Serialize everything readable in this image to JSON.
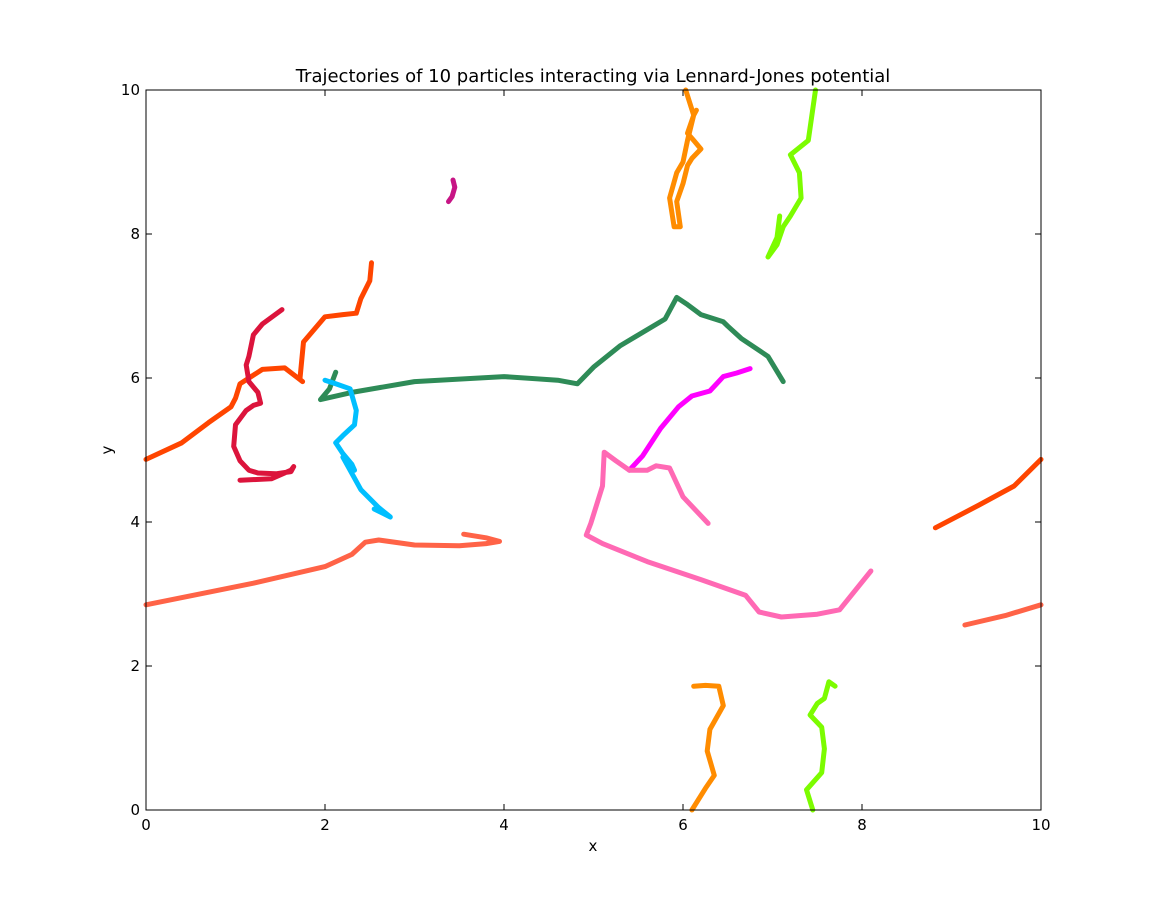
{
  "chart_data": {
    "type": "line",
    "title": "Trajectories of 10 particles interacting via Lennard-Jones potential",
    "xlabel": "x",
    "ylabel": "y",
    "xlim": [
      0,
      10
    ],
    "ylim": [
      0,
      10
    ],
    "xticks": [
      "0",
      "2",
      "4",
      "6",
      "8",
      "10"
    ],
    "yticks": [
      "0",
      "2",
      "4",
      "6",
      "8",
      "10"
    ],
    "grid": false,
    "legend": "none",
    "series": [
      {
        "color": "#ff4500",
        "segments": [
          [
            [
              0,
              4.87
            ],
            [
              0.4,
              5.1
            ],
            [
              0.7,
              5.38
            ],
            [
              0.95,
              5.6
            ],
            [
              1.0,
              5.72
            ],
            [
              1.05,
              5.92
            ],
            [
              1.3,
              6.12
            ],
            [
              1.55,
              6.14
            ],
            [
              1.75,
              5.95
            ],
            [
              1.72,
              5.98
            ],
            [
              1.76,
              6.5
            ],
            [
              2.0,
              6.85
            ],
            [
              2.2,
              6.88
            ],
            [
              2.35,
              6.9
            ],
            [
              2.4,
              7.1
            ],
            [
              2.5,
              7.35
            ],
            [
              2.52,
              7.6
            ]
          ],
          [
            [
              8.82,
              3.92
            ],
            [
              9.3,
              4.23
            ],
            [
              9.7,
              4.5
            ],
            [
              10,
              4.87
            ]
          ]
        ]
      },
      {
        "color": "#dc143c",
        "segments": [
          [
            [
              1.52,
              6.95
            ],
            [
              1.3,
              6.75
            ],
            [
              1.2,
              6.6
            ],
            [
              1.15,
              6.3
            ],
            [
              1.12,
              6.18
            ],
            [
              1.15,
              5.95
            ],
            [
              1.25,
              5.8
            ],
            [
              1.28,
              5.65
            ],
            [
              1.2,
              5.62
            ],
            [
              1.12,
              5.55
            ],
            [
              1.0,
              5.35
            ],
            [
              0.98,
              5.05
            ],
            [
              1.05,
              4.85
            ],
            [
              1.15,
              4.72
            ],
            [
              1.25,
              4.68
            ],
            [
              1.45,
              4.67
            ],
            [
              1.62,
              4.7
            ],
            [
              1.65,
              4.77
            ],
            [
              1.62,
              4.72
            ],
            [
              1.4,
              4.6
            ],
            [
              1.05,
              4.58
            ]
          ]
        ]
      },
      {
        "color": "#c71585",
        "segments": [
          [
            [
              3.43,
              8.75
            ],
            [
              3.45,
              8.65
            ],
            [
              3.42,
              8.52
            ],
            [
              3.38,
              8.45
            ]
          ]
        ]
      },
      {
        "color": "#2e8b57",
        "segments": [
          [
            [
              2.12,
              6.08
            ],
            [
              2.05,
              5.85
            ],
            [
              1.95,
              5.7
            ],
            [
              2.3,
              5.8
            ],
            [
              3.0,
              5.95
            ],
            [
              4.0,
              6.02
            ],
            [
              4.6,
              5.97
            ],
            [
              4.82,
              5.92
            ],
            [
              5.0,
              6.15
            ],
            [
              5.3,
              6.45
            ],
            [
              5.8,
              6.82
            ],
            [
              5.93,
              7.12
            ],
            [
              6.05,
              7.02
            ],
            [
              6.2,
              6.88
            ],
            [
              6.45,
              6.78
            ],
            [
              6.5,
              6.72
            ],
            [
              6.65,
              6.55
            ],
            [
              6.95,
              6.3
            ],
            [
              7.12,
              5.95
            ]
          ]
        ]
      },
      {
        "color": "#00bfff",
        "segments": [
          [
            [
              2.0,
              5.97
            ],
            [
              2.12,
              5.92
            ],
            [
              2.28,
              5.85
            ],
            [
              2.35,
              5.55
            ],
            [
              2.33,
              5.35
            ],
            [
              2.2,
              5.2
            ],
            [
              2.12,
              5.1
            ],
            [
              2.2,
              4.95
            ],
            [
              2.3,
              4.8
            ],
            [
              2.33,
              4.72
            ],
            [
              2.2,
              4.9
            ],
            [
              2.4,
              4.45
            ],
            [
              2.6,
              4.2
            ],
            [
              2.73,
              4.07
            ],
            [
              2.55,
              4.18
            ]
          ]
        ]
      },
      {
        "color": "#ff00ff",
        "segments": [
          [
            [
              5.4,
              4.72
            ],
            [
              5.55,
              4.92
            ],
            [
              5.75,
              5.3
            ],
            [
              5.95,
              5.6
            ],
            [
              6.1,
              5.75
            ],
            [
              6.3,
              5.82
            ],
            [
              6.45,
              6.02
            ],
            [
              6.6,
              6.07
            ],
            [
              6.75,
              6.13
            ]
          ]
        ]
      },
      {
        "color": "#ff69b4",
        "segments": [
          [
            [
              6.28,
              3.98
            ],
            [
              6.0,
              4.35
            ],
            [
              5.85,
              4.75
            ],
            [
              5.7,
              4.78
            ],
            [
              5.6,
              4.72
            ],
            [
              5.4,
              4.72
            ],
            [
              5.25,
              4.85
            ],
            [
              5.12,
              4.97
            ],
            [
              5.1,
              4.5
            ],
            [
              4.97,
              3.98
            ],
            [
              4.92,
              3.82
            ],
            [
              5.1,
              3.7
            ],
            [
              5.6,
              3.45
            ],
            [
              6.2,
              3.2
            ],
            [
              6.7,
              2.98
            ],
            [
              6.85,
              2.75
            ],
            [
              7.1,
              2.68
            ],
            [
              7.5,
              2.72
            ],
            [
              7.75,
              2.78
            ],
            [
              8.1,
              3.32
            ]
          ]
        ]
      },
      {
        "color": "#ff6347",
        "segments": [
          [
            [
              0,
              2.85
            ],
            [
              1.2,
              3.15
            ],
            [
              2.0,
              3.38
            ],
            [
              2.3,
              3.55
            ],
            [
              2.45,
              3.72
            ],
            [
              2.6,
              3.75
            ],
            [
              3.0,
              3.68
            ],
            [
              3.5,
              3.67
            ],
            [
              3.8,
              3.7
            ],
            [
              3.95,
              3.73
            ],
            [
              3.8,
              3.78
            ],
            [
              3.55,
              3.83
            ]
          ],
          [
            [
              9.15,
              2.57
            ],
            [
              9.6,
              2.7
            ],
            [
              10,
              2.85
            ]
          ]
        ]
      },
      {
        "color": "#ff8c00",
        "segments": [
          [
            [
              6.1,
              0
            ],
            [
              6.25,
              0.3
            ],
            [
              6.35,
              0.48
            ],
            [
              6.27,
              0.82
            ],
            [
              6.3,
              1.12
            ],
            [
              6.45,
              1.45
            ],
            [
              6.4,
              1.72
            ],
            [
              6.25,
              1.73
            ],
            [
              6.12,
              1.72
            ]
          ],
          [
            [
              6.03,
              10
            ],
            [
              6.12,
              9.65
            ],
            [
              6.05,
              9.4
            ],
            [
              6.12,
              9.3
            ],
            [
              6.2,
              9.18
            ],
            [
              6.1,
              9.05
            ],
            [
              6.05,
              8.95
            ],
            [
              6.0,
              8.7
            ],
            [
              5.93,
              8.45
            ],
            [
              5.97,
              8.1
            ],
            [
              5.9,
              8.1
            ],
            [
              5.85,
              8.5
            ],
            [
              5.93,
              8.85
            ],
            [
              6.0,
              9.0
            ],
            [
              6.05,
              9.3
            ],
            [
              6.12,
              9.65
            ],
            [
              6.15,
              9.72
            ]
          ]
        ]
      },
      {
        "color": "#7cfc00",
        "segments": [
          [
            [
              7.45,
              0
            ],
            [
              7.38,
              0.28
            ],
            [
              7.55,
              0.52
            ],
            [
              7.58,
              0.85
            ],
            [
              7.55,
              1.15
            ],
            [
              7.42,
              1.32
            ],
            [
              7.5,
              1.48
            ],
            [
              7.58,
              1.55
            ],
            [
              7.63,
              1.78
            ],
            [
              7.7,
              1.72
            ]
          ],
          [
            [
              7.48,
              10
            ],
            [
              7.4,
              9.3
            ],
            [
              7.2,
              9.1
            ],
            [
              7.3,
              8.85
            ],
            [
              7.32,
              8.5
            ],
            [
              7.2,
              8.25
            ],
            [
              7.12,
              8.1
            ],
            [
              7.05,
              7.85
            ],
            [
              6.95,
              7.68
            ],
            [
              7.05,
              7.95
            ],
            [
              7.08,
              8.25
            ]
          ]
        ]
      }
    ]
  }
}
